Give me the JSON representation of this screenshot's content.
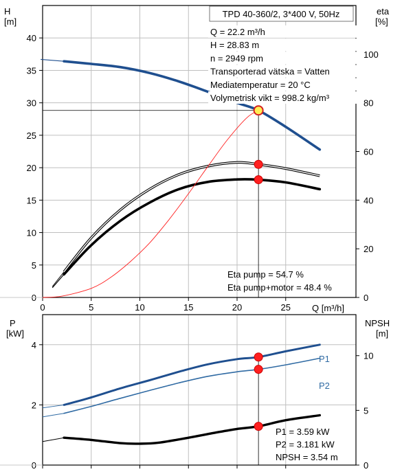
{
  "colors": {
    "blue": "#1f4f8f",
    "blue_light": "#2f6aa3",
    "black": "#000000",
    "red": "#ff2020",
    "op_fill": "#ffee55",
    "op_stroke": "#d42020",
    "grid": "#bfbfbf",
    "edge": "#c8c8c8"
  },
  "chart_data": [
    {
      "type": "line",
      "title": "TPD 40-360/2, 3*400 V, 50Hz",
      "xlabel": "Q [m³/h]",
      "ylabel_left": [
        "H",
        "[m]"
      ],
      "ylabel_right": [
        "eta",
        "[%]"
      ],
      "xlim": [
        0,
        30
      ],
      "xticks": [
        0,
        5,
        10,
        15,
        20,
        25
      ],
      "ylim_left": [
        0,
        45
      ],
      "yticks_left": [
        0,
        5,
        10,
        15,
        20,
        25,
        30,
        35,
        40
      ],
      "ylim_right": [
        0,
        120
      ],
      "yticks_right": [
        0,
        20,
        40,
        60,
        80,
        100
      ],
      "grid": true,
      "info": [
        "Q = 22.2 m³/h",
        "H = 28.83 m",
        "n = 2949 rpm",
        "Transporterad vätska = Vatten",
        "Mediatemperatur = 20 °C",
        "Volymetrisk vikt = 998.2 kg/m³"
      ],
      "results": [
        "Eta pump = 54.7 %",
        "Eta pump+motor = 48.4 %"
      ],
      "operating_point": {
        "q": 22.2,
        "h": 28.83,
        "eta_pump": 54.7,
        "eta_total": 48.4
      },
      "series": [
        {
          "axis": "left",
          "style": "head",
          "x": [
            -0.2,
            2.2,
            5,
            8,
            11,
            14,
            17,
            20,
            22.2,
            25,
            28.5
          ],
          "y": [
            36.7,
            36.4,
            36.0,
            35.5,
            34.6,
            33.3,
            31.7,
            30.0,
            28.83,
            26.3,
            22.8
          ],
          "lead_to": 2.2
        },
        {
          "axis": "right",
          "style": "eta_pump",
          "x": [
            1,
            2.2,
            5,
            8,
            11,
            14,
            17,
            20,
            22.2,
            25,
            28.5
          ],
          "y": [
            4.5,
            10.5,
            24.5,
            36,
            44.5,
            50.5,
            54,
            55.5,
            54.7,
            53,
            50
          ],
          "lead_to": 2.2
        },
        {
          "axis": "right",
          "style": "eta_total",
          "x": [
            1,
            2.2,
            5,
            8,
            11,
            14,
            17,
            20,
            22.2,
            25,
            28.5
          ],
          "y": [
            4,
            9.5,
            21.5,
            31.5,
            39,
            44.5,
            47.5,
            48.5,
            48.4,
            47.3,
            44.5
          ],
          "lead_to": 2.2
        },
        {
          "axis": "left",
          "style": "thin_red",
          "x": [
            0,
            2,
            5,
            7,
            9,
            11,
            13,
            15,
            17,
            19,
            21,
            22.2
          ],
          "y": [
            0,
            0.2,
            1.4,
            3.1,
            5.5,
            8.4,
            12.0,
            16.0,
            20.2,
            24.3,
            27.7,
            28.83
          ],
          "lead_to": 0
        }
      ],
      "markers": [
        {
          "axis": "right",
          "x": 22.2,
          "y": 54.7
        },
        {
          "axis": "right",
          "x": 22.2,
          "y": 48.4
        }
      ]
    },
    {
      "type": "line",
      "ylabel_left": [
        "P",
        "[kW]"
      ],
      "ylabel_right": [
        "NPSH",
        "[m]"
      ],
      "xlim": [
        0,
        30
      ],
      "ylim_left": [
        0,
        5
      ],
      "yticks_left": [
        0,
        2,
        4
      ],
      "ylim_right": [
        0,
        13.75
      ],
      "yticks_right": [
        0,
        5,
        10
      ],
      "grid": true,
      "results": [
        "P1 = 3.59 kW",
        "P2 = 3.181 kW",
        "NPSH = 3.54 m"
      ],
      "series": [
        {
          "name": "P1",
          "axis": "left",
          "style": "p1",
          "x": [
            0,
            2.2,
            5,
            8,
            11,
            14,
            17,
            20,
            22.2,
            25,
            28.5
          ],
          "y": [
            1.9,
            2.0,
            2.25,
            2.55,
            2.82,
            3.1,
            3.35,
            3.52,
            3.59,
            3.78,
            4.0
          ],
          "lead_to": 2.2
        },
        {
          "name": "P2",
          "axis": "left",
          "style": "p2",
          "x": [
            0,
            2.2,
            5,
            8,
            11,
            14,
            17,
            20,
            22.2,
            25,
            28.5
          ],
          "y": [
            1.6,
            1.72,
            1.95,
            2.22,
            2.48,
            2.73,
            2.95,
            3.1,
            3.181,
            3.33,
            3.55
          ],
          "lead_to": 2.2
        },
        {
          "axis": "right",
          "style": "npsh",
          "x": [
            0,
            2.2,
            5,
            8,
            10,
            12,
            15,
            18,
            20,
            22.2,
            25,
            28.5
          ],
          "y": [
            2.15,
            2.5,
            2.3,
            2.0,
            1.95,
            2.05,
            2.5,
            3.0,
            3.3,
            3.54,
            4.1,
            4.55
          ],
          "lead_to": 2.2
        }
      ],
      "markers": [
        {
          "axis": "left",
          "x": 22.2,
          "y": 3.59
        },
        {
          "axis": "left",
          "x": 22.2,
          "y": 3.181
        },
        {
          "axis": "right",
          "x": 22.2,
          "y": 3.54
        }
      ]
    }
  ]
}
